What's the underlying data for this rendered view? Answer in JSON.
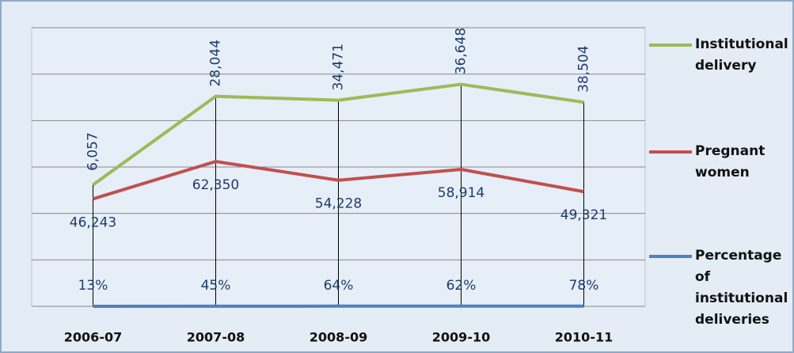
{
  "chart_data": {
    "type": "line",
    "stacked": true,
    "categories": [
      "2006-07",
      "2007-08",
      "2008-09",
      "2009-10",
      "2010-11"
    ],
    "series": [
      {
        "name": "Percentage of institutional deliveries",
        "color": "#4f81bd",
        "values": [
          13,
          45,
          64,
          62,
          78
        ],
        "value_labels": [
          "13%",
          "45%",
          "64%",
          "62%",
          "78%"
        ]
      },
      {
        "name": "Pregnant women",
        "color": "#c0504d",
        "values": [
          46243,
          62350,
          54228,
          58914,
          49321
        ],
        "value_labels": [
          "46,243",
          "62,350",
          "54,228",
          "58,914",
          "49,321"
        ]
      },
      {
        "name": "Institutional delivery",
        "color": "#9bbb59",
        "values": [
          6057,
          28044,
          34471,
          36648,
          38504
        ],
        "value_labels": [
          "6,057",
          "28,044",
          "34,471",
          "36,648",
          "38,504"
        ]
      }
    ],
    "ylim": [
      0,
      120000
    ],
    "yticks": [
      0,
      20000,
      40000,
      60000,
      80000,
      100000,
      120000
    ],
    "grid": true,
    "drop_lines": true,
    "legend": "right"
  }
}
